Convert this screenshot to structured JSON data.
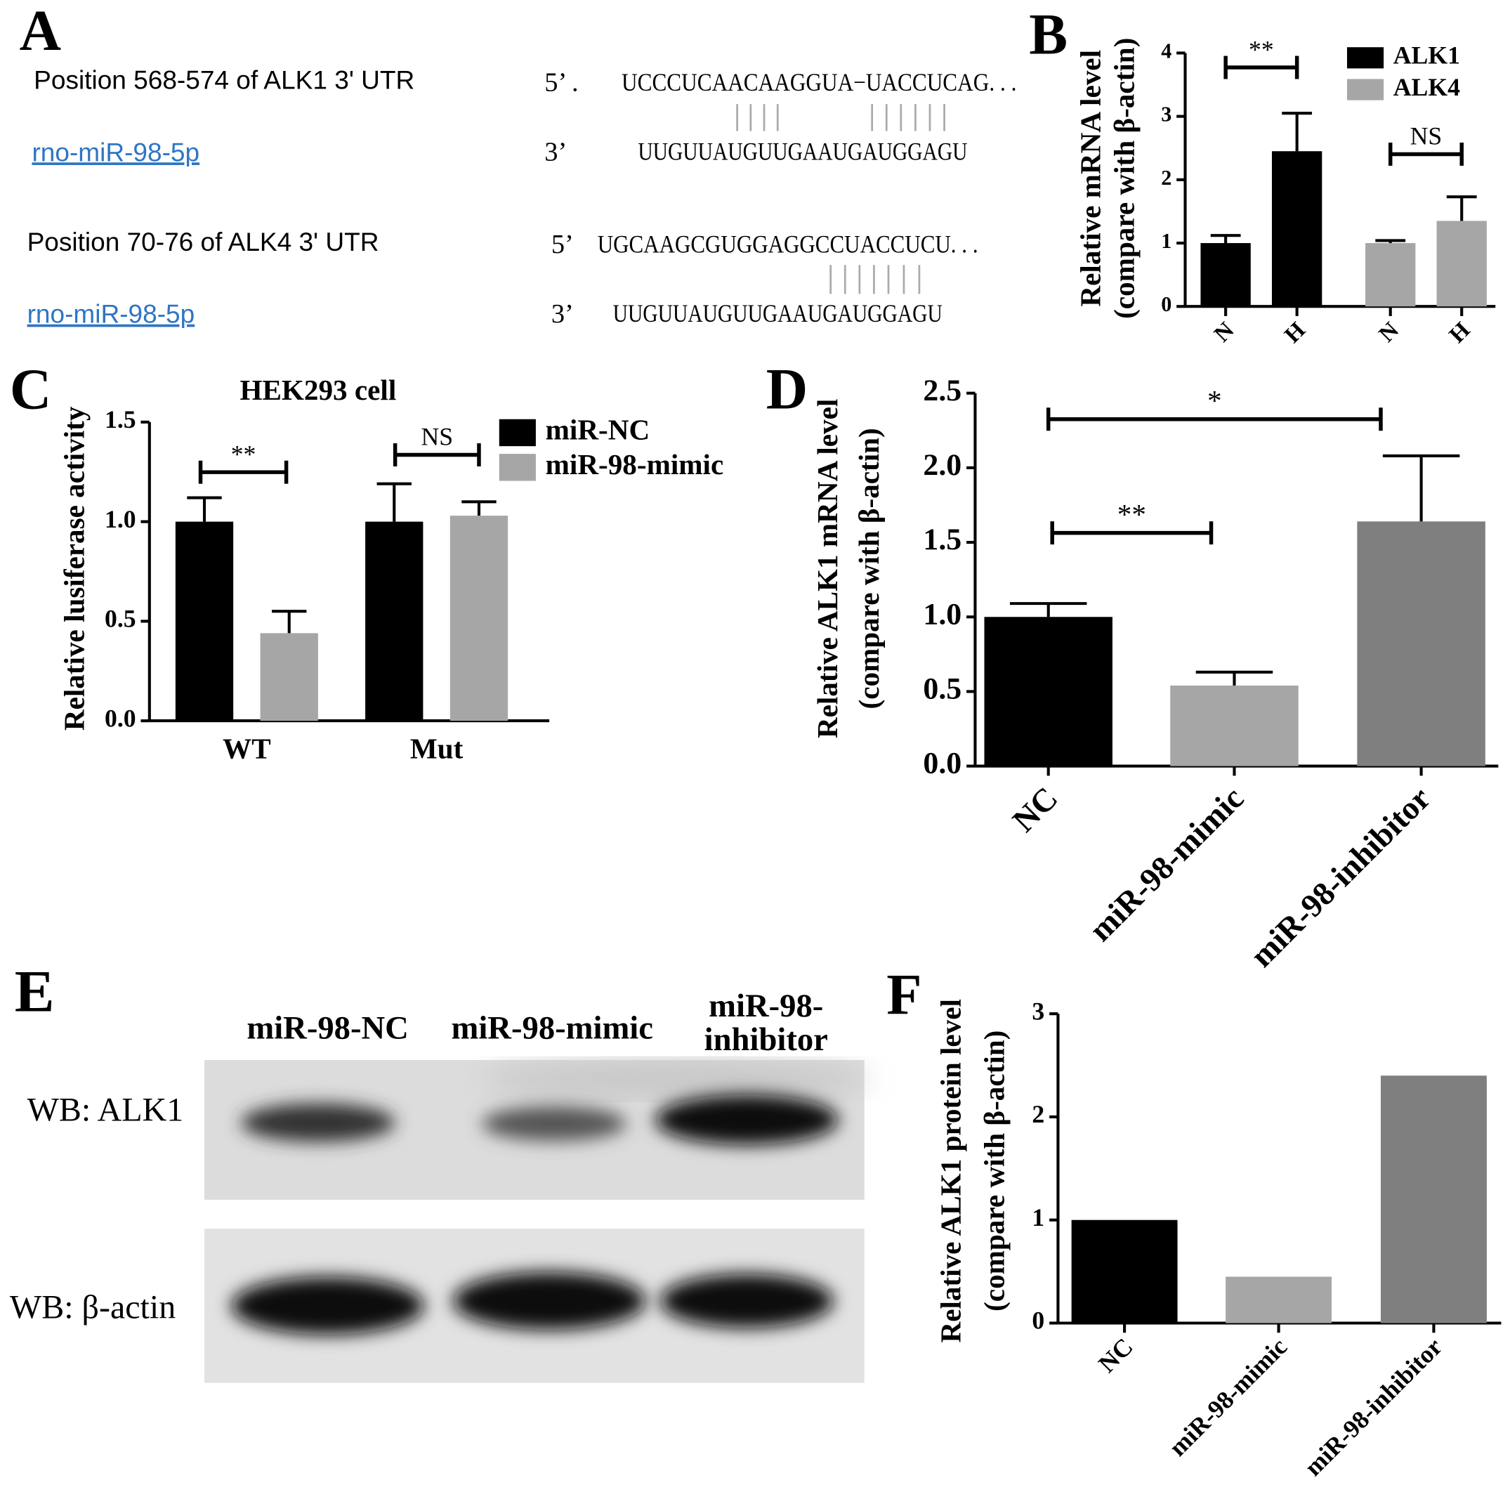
{
  "panel_a": {
    "label": "A",
    "rows": [
      {
        "title": "Position 568-574 of ALK1 3' UTR",
        "prime5": "5’ .",
        "target": "UCCCUCAACAAGGUA−UACCUCAG. . .",
        "mirna": "rno-miR-98-5p",
        "prime3": "3’",
        "mirna_seq": "UUGUUAUGUUGAAUGAUGGAGU"
      },
      {
        "title": "Position 70-76 of ALK4 3' UTR",
        "prime5": "5’",
        "target": "UGCAAGCGUGGAGGCCUACCUCU. . .",
        "mirna": "rno-miR-98-5p",
        "prime3": "3’",
        "mirna_seq": "UUGUUAUGUUGAAUGAUGGAGU"
      }
    ]
  },
  "chart_data": [
    {
      "type": "bar",
      "panel_label": "B",
      "categories": [
        "N",
        "H",
        "N",
        "H"
      ],
      "series": [
        {
          "name": "ALK1",
          "color": "#000000",
          "values": [
            1.0,
            2.45,
            null,
            null
          ],
          "errors": [
            0.12,
            0.6,
            null,
            null
          ]
        },
        {
          "name": "ALK4",
          "color": "#a6a6a6",
          "values": [
            null,
            null,
            1.0,
            1.35
          ],
          "errors": [
            null,
            null,
            0.04,
            0.38
          ]
        }
      ],
      "ylabel": [
        "Relative mRNA level",
        "(compare with β-actin)"
      ],
      "ylim": [
        0,
        4
      ],
      "yticks": [
        0,
        1,
        2,
        3,
        4
      ],
      "annotations": [
        "**",
        "NS"
      ]
    },
    {
      "type": "bar",
      "panel_label": "C",
      "title": "HEK293 cell",
      "categories": [
        "WT",
        "Mut"
      ],
      "series": [
        {
          "name": "miR-NC",
          "color": "#000000",
          "values": [
            1.0,
            1.0
          ],
          "errors": [
            0.12,
            0.19
          ]
        },
        {
          "name": "miR-98-mimic",
          "color": "#a6a6a6",
          "values": [
            0.44,
            1.03
          ],
          "errors": [
            0.11,
            0.07
          ]
        }
      ],
      "ylabel": [
        "Relative lusiferase activity"
      ],
      "ylim": [
        0,
        1.5
      ],
      "yticks": [
        {
          "value": 0,
          "label": "0.0"
        },
        {
          "value": 0.5,
          "label": "0.5"
        },
        {
          "value": 1,
          "label": "1.0"
        },
        {
          "value": 1.5,
          "label": "1.5"
        }
      ],
      "annotations": [
        "**",
        "NS"
      ]
    },
    {
      "type": "bar",
      "panel_label": "D",
      "categories": [
        "NC",
        "miR-98-mimic",
        "miR-98-inhibitor"
      ],
      "values": [
        1.0,
        0.54,
        1.64
      ],
      "errors": [
        0.09,
        0.09,
        0.44
      ],
      "colors": [
        "#000000",
        "#a6a6a6",
        "#7f7f7f"
      ],
      "ylabel": [
        "Relative ALK1 mRNA level",
        "(compare with β-actin)"
      ],
      "ylim": [
        0,
        2.5
      ],
      "yticks": [
        {
          "value": 0,
          "label": "0.0"
        },
        {
          "value": 0.5,
          "label": "0.5"
        },
        {
          "value": 1,
          "label": "1.0"
        },
        {
          "value": 1.5,
          "label": "1.5"
        },
        {
          "value": 2,
          "label": "2.0"
        },
        {
          "value": 2.5,
          "label": "2.5"
        }
      ],
      "annotations": [
        "*",
        "**"
      ]
    },
    {
      "type": "bar",
      "panel_label": "F",
      "categories": [
        "NC",
        "miR-98-mimic",
        "miR-98-inhibitor"
      ],
      "values": [
        1.0,
        0.45,
        2.4
      ],
      "colors": [
        "#000000",
        "#a6a6a6",
        "#7f7f7f"
      ],
      "ylabel": [
        "Relative ALK1 protein level",
        "(compare with β-actin)"
      ],
      "ylim": [
        0,
        3
      ],
      "yticks": [
        0,
        1,
        2,
        3
      ]
    }
  ],
  "panel_e": {
    "label": "E",
    "columns": [
      [
        "miR-98-NC"
      ],
      [
        "miR-98-mimic"
      ],
      [
        "miR-98-",
        "inhibitor"
      ]
    ],
    "rows": [
      "WB: ALK1",
      "WB: β-actin"
    ]
  }
}
